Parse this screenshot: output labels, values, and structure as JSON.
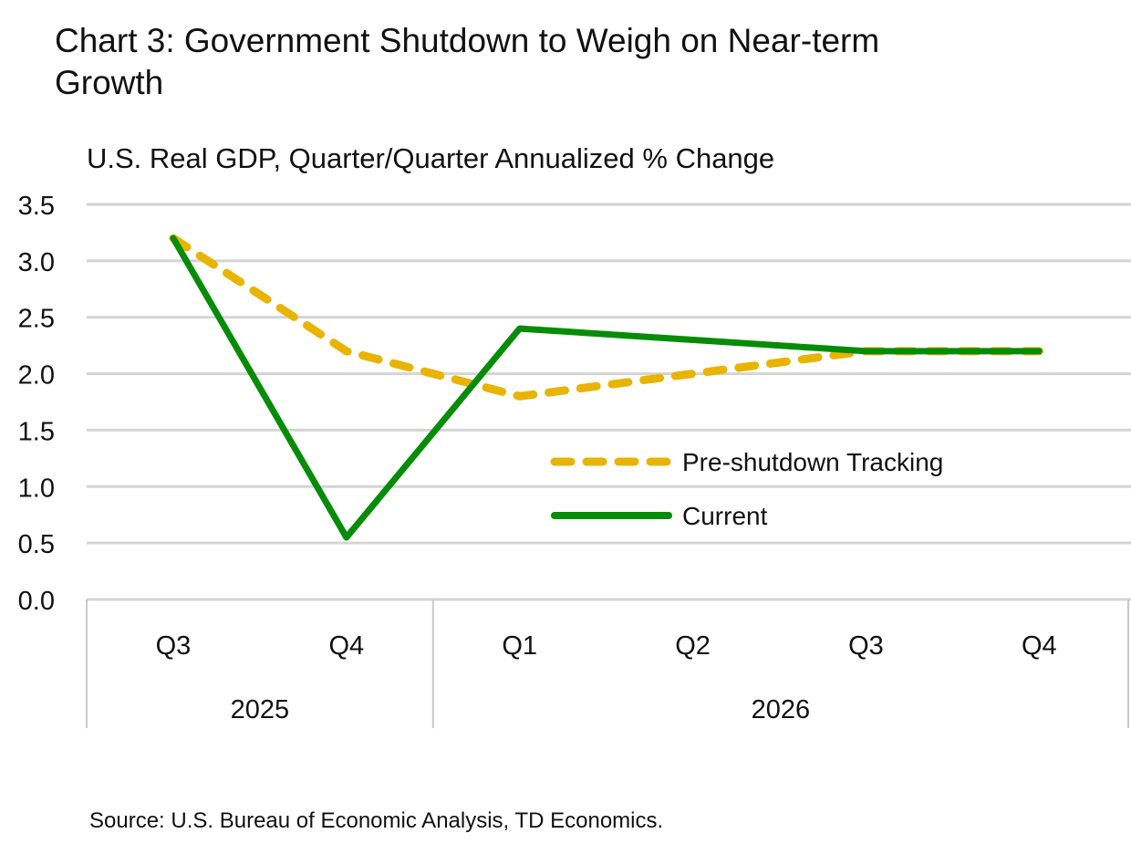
{
  "title": "Chart 3: Government Shutdown to Weigh on Near-term Growth",
  "source": "Source: U.S. Bureau of Economic Analysis, TD Economics.",
  "chart_data": {
    "type": "line",
    "title": "Chart 3: Government Shutdown to Weigh on Near-term Growth",
    "ylabel": "U.S. Real GDP, Quarter/Quarter Annualized % Change",
    "categories": [
      "Q3",
      "Q4",
      "Q1",
      "Q2",
      "Q3",
      "Q4"
    ],
    "category_groups": [
      {
        "label": "2025",
        "span": 2
      },
      {
        "label": "2026",
        "span": 4
      }
    ],
    "ylim": [
      0,
      3.5
    ],
    "yticks": [
      "0.0",
      "0.5",
      "1.0",
      "1.5",
      "2.0",
      "2.5",
      "3.0",
      "3.5"
    ],
    "grid": true,
    "legend_position": "center-right",
    "series": [
      {
        "name": "Pre-shutdown Tracking",
        "values": [
          3.2,
          2.2,
          1.8,
          2.0,
          2.2,
          2.2
        ],
        "color": "#E8B400",
        "style": "dashed"
      },
      {
        "name": "Current",
        "values": [
          3.2,
          0.55,
          2.4,
          2.3,
          2.2,
          2.2
        ],
        "color": "#068C06",
        "style": "solid"
      }
    ]
  }
}
